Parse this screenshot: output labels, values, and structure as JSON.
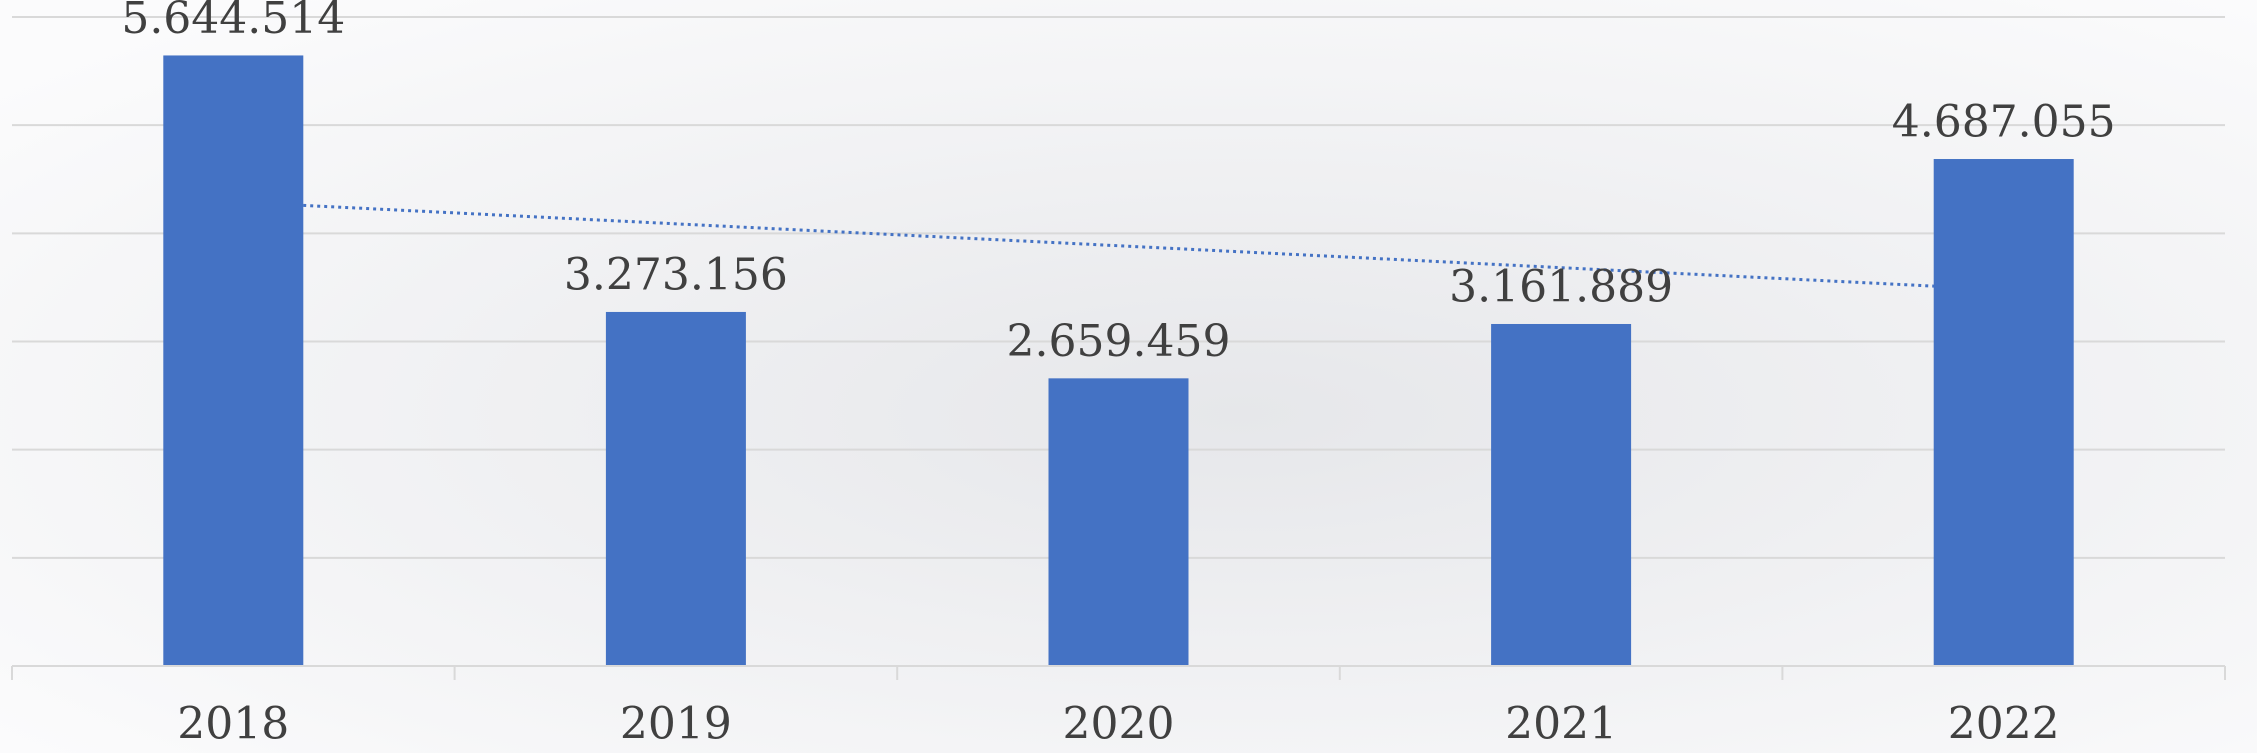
{
  "chart_data": {
    "type": "bar",
    "categories": [
      "2018",
      "2019",
      "2020",
      "2021",
      "2022"
    ],
    "values": [
      5644514,
      3273156,
      2659459,
      3161889,
      4687055
    ],
    "value_labels": [
      "5.644.514",
      "3.273.156",
      "2.659.459",
      "3.161.889",
      "4.687.055"
    ],
    "color": "#4472c4",
    "ylim": [
      0,
      6000000
    ],
    "yticks": [
      0,
      1000000,
      2000000,
      3000000,
      4000000,
      5000000,
      6000000
    ],
    "grid": true,
    "trendline": "linear"
  }
}
